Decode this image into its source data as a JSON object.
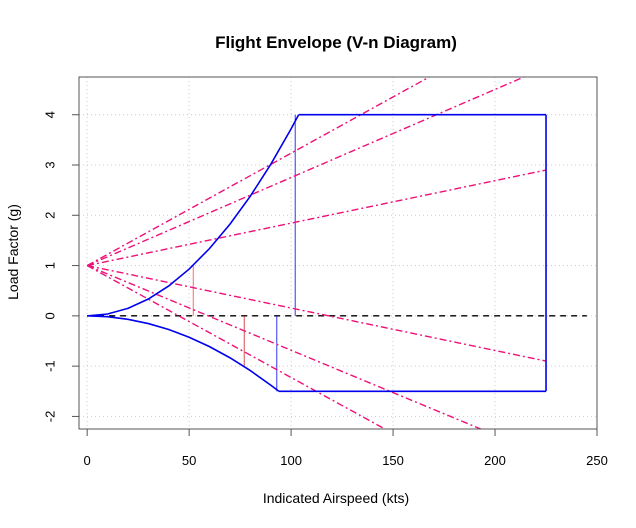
{
  "chart_data": {
    "type": "line",
    "title": "Flight Envelope (V-n Diagram)",
    "xlabel": "Indicated Airspeed (kts)",
    "ylabel": "Load Factor (g)",
    "xlim": [
      -4,
      250
    ],
    "ylim": [
      -2.25,
      4.75
    ],
    "x_ticks": [
      0,
      50,
      100,
      150,
      200,
      250
    ],
    "y_ticks": [
      -2,
      -1,
      0,
      1,
      2,
      3,
      4
    ],
    "grid": true,
    "colors": {
      "envelope": "#0000ee",
      "gust": "#ee1177",
      "zero_line": "#000000",
      "limit_positive": "#ff4444",
      "limit_negative": "#cc2222",
      "grid": "#cccccc"
    },
    "series": [
      {
        "role": "positive-stall-curve",
        "style": "solid",
        "x": [
          0,
          10,
          20,
          30,
          40,
          50,
          60,
          70,
          80,
          90,
          100,
          103.7
        ],
        "y": [
          0,
          0.037,
          0.149,
          0.335,
          0.595,
          0.93,
          1.339,
          1.822,
          2.38,
          3.012,
          3.719,
          4.0
        ]
      },
      {
        "role": "negative-stall-curve",
        "style": "solid",
        "x": [
          0,
          10,
          20,
          30,
          40,
          50,
          60,
          70,
          80,
          90,
          94
        ],
        "y": [
          0,
          -0.017,
          -0.068,
          -0.153,
          -0.272,
          -0.425,
          -0.612,
          -0.833,
          -1.088,
          -1.378,
          -1.5
        ]
      },
      {
        "role": "positive-limit-line",
        "style": "solid",
        "x": [
          103.7,
          225
        ],
        "y": [
          4,
          4
        ]
      },
      {
        "role": "dive-speed-line",
        "style": "solid",
        "x": [
          225,
          225
        ],
        "y": [
          4,
          -1.5
        ]
      },
      {
        "role": "negative-limit-line",
        "style": "solid",
        "x": [
          94,
          225
        ],
        "y": [
          -1.5,
          -1.5
        ]
      },
      {
        "role": "zero-load-line",
        "style": "dashed",
        "x": [
          0,
          245
        ],
        "y": [
          0,
          0
        ]
      },
      {
        "role": "gust-line-positive-high",
        "style": "dashdot",
        "x": [
          0,
          170
        ],
        "y": [
          1,
          4.8
        ]
      },
      {
        "role": "gust-line-positive-mid",
        "style": "dashdot",
        "x": [
          0,
          217
        ],
        "y": [
          1,
          4.8
        ]
      },
      {
        "role": "gust-line-positive-low",
        "style": "dashdot",
        "x": [
          0,
          225
        ],
        "y": [
          1,
          2.9
        ]
      },
      {
        "role": "gust-line-negative-low",
        "style": "dashdot",
        "x": [
          0,
          225
        ],
        "y": [
          1,
          -0.9
        ]
      },
      {
        "role": "gust-line-negative-mid",
        "style": "dashdot",
        "x": [
          0,
          193
        ],
        "y": [
          1,
          -2.25
        ]
      },
      {
        "role": "gust-line-negative-high",
        "style": "dashdot",
        "x": [
          0,
          146
        ],
        "y": [
          1,
          -2.25
        ]
      },
      {
        "role": "maneuver-marker-1",
        "style": "thin",
        "x": [
          52,
          52
        ],
        "y": [
          0,
          1
        ]
      },
      {
        "role": "maneuver-marker-2",
        "style": "thin",
        "x": [
          77,
          77
        ],
        "y": [
          0,
          -1
        ]
      },
      {
        "role": "maneuver-marker-3",
        "style": "thin",
        "x": [
          93,
          93
        ],
        "y": [
          0,
          -1.5
        ]
      },
      {
        "role": "maneuver-marker-4",
        "style": "thin",
        "x": [
          102,
          102
        ],
        "y": [
          0,
          4
        ]
      }
    ]
  }
}
